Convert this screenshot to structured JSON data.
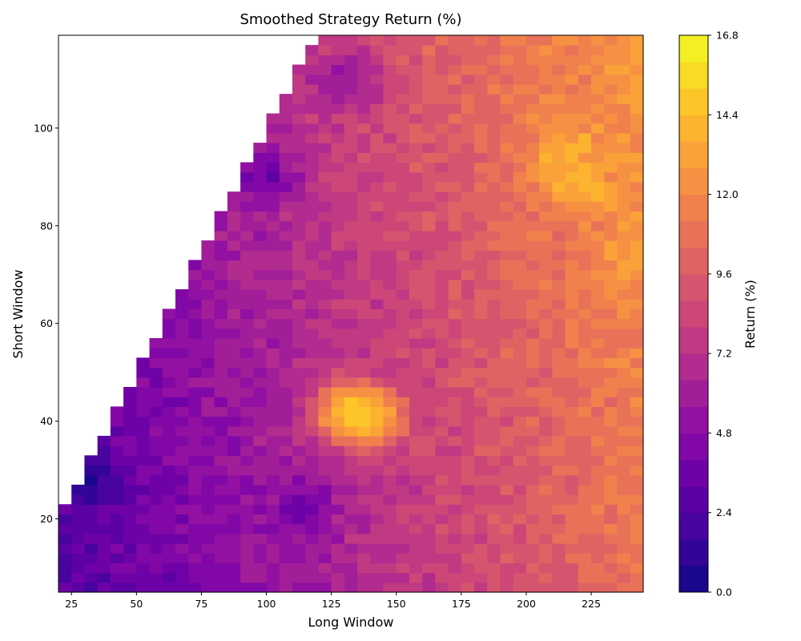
{
  "chart_data": {
    "type": "heatmap",
    "title": "Smoothed Strategy Return (%)",
    "xlabel": "Long Window",
    "ylabel": "Short Window",
    "xlim": [
      20,
      245
    ],
    "ylim": [
      5,
      119
    ],
    "x_ticks": [
      25,
      50,
      75,
      100,
      125,
      150,
      175,
      200,
      225
    ],
    "y_ticks": [
      20,
      40,
      60,
      80,
      100
    ],
    "colorbar": {
      "label": "Return (%)",
      "range": [
        0.0,
        16.8
      ],
      "ticks": [
        "0.0",
        "2.4",
        "4.8",
        "7.2",
        "9.6",
        "12.0",
        "14.4",
        "16.8"
      ],
      "levels": 21,
      "colormap": "plasma"
    },
    "valid_region": "short_window < long_window",
    "hotspots": [
      {
        "x": 130,
        "y": 42,
        "value": 15.0
      },
      {
        "x": 140,
        "y": 41,
        "value": 15.5
      },
      {
        "x": 215,
        "y": 95,
        "value": 14.5
      },
      {
        "x": 220,
        "y": 88,
        "value": 14.0
      },
      {
        "x": 243,
        "y": 73,
        "value": 13.5
      },
      {
        "x": 32,
        "y": 28,
        "value": 1.0
      },
      {
        "x": 100,
        "y": 90,
        "value": 3.0
      },
      {
        "x": 130,
        "y": 110,
        "value": 4.5
      },
      {
        "x": 115,
        "y": 22,
        "value": 3.5
      }
    ]
  }
}
